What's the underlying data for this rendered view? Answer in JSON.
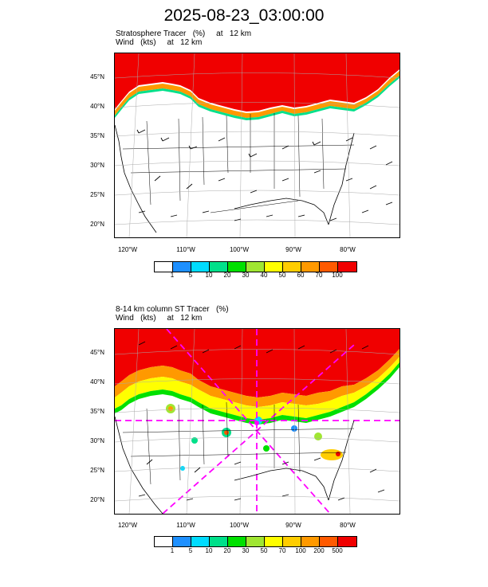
{
  "title": "2025-08-23_03:00:00",
  "panels": [
    {
      "line1": "Stratosphere Tracer   (%)     at   12 km",
      "line2": "Wind   (kts)     at   12 km",
      "lat_labels": [
        "45°N",
        "40°N",
        "35°N",
        "30°N",
        "25°N",
        "20°N"
      ],
      "lon_labels": [
        "120°W",
        "110°W",
        "100°W",
        "90°W",
        "80°W"
      ],
      "colorbar": {
        "colors": [
          "#ffffff",
          "#1e90ff",
          "#00dcff",
          "#00e08a",
          "#00e000",
          "#a0e632",
          "#ffff00",
          "#ffcd00",
          "#ff9900",
          "#ff5a00",
          "#f00000"
        ],
        "labels": [
          "1",
          "5",
          "10",
          "20",
          "30",
          "40",
          "50",
          "60",
          "70",
          "100"
        ]
      }
    },
    {
      "line1": "8-14 km column ST Tracer   (%)",
      "line2": "Wind   (kts)     at   12 km",
      "lat_labels": [
        "45°N",
        "40°N",
        "35°N",
        "30°N",
        "25°N",
        "20°N"
      ],
      "lon_labels": [
        "120°W",
        "110°W",
        "100°W",
        "90°W",
        "80°W"
      ],
      "colorbar": {
        "colors": [
          "#ffffff",
          "#1e90ff",
          "#00dcff",
          "#00e08a",
          "#00e000",
          "#a0e632",
          "#ffff00",
          "#ffcd00",
          "#ff9900",
          "#ff5a00",
          "#f00000"
        ],
        "labels": [
          "1",
          "5",
          "10",
          "20",
          "30",
          "50",
          "70",
          "100",
          "200",
          "500"
        ]
      }
    }
  ]
}
